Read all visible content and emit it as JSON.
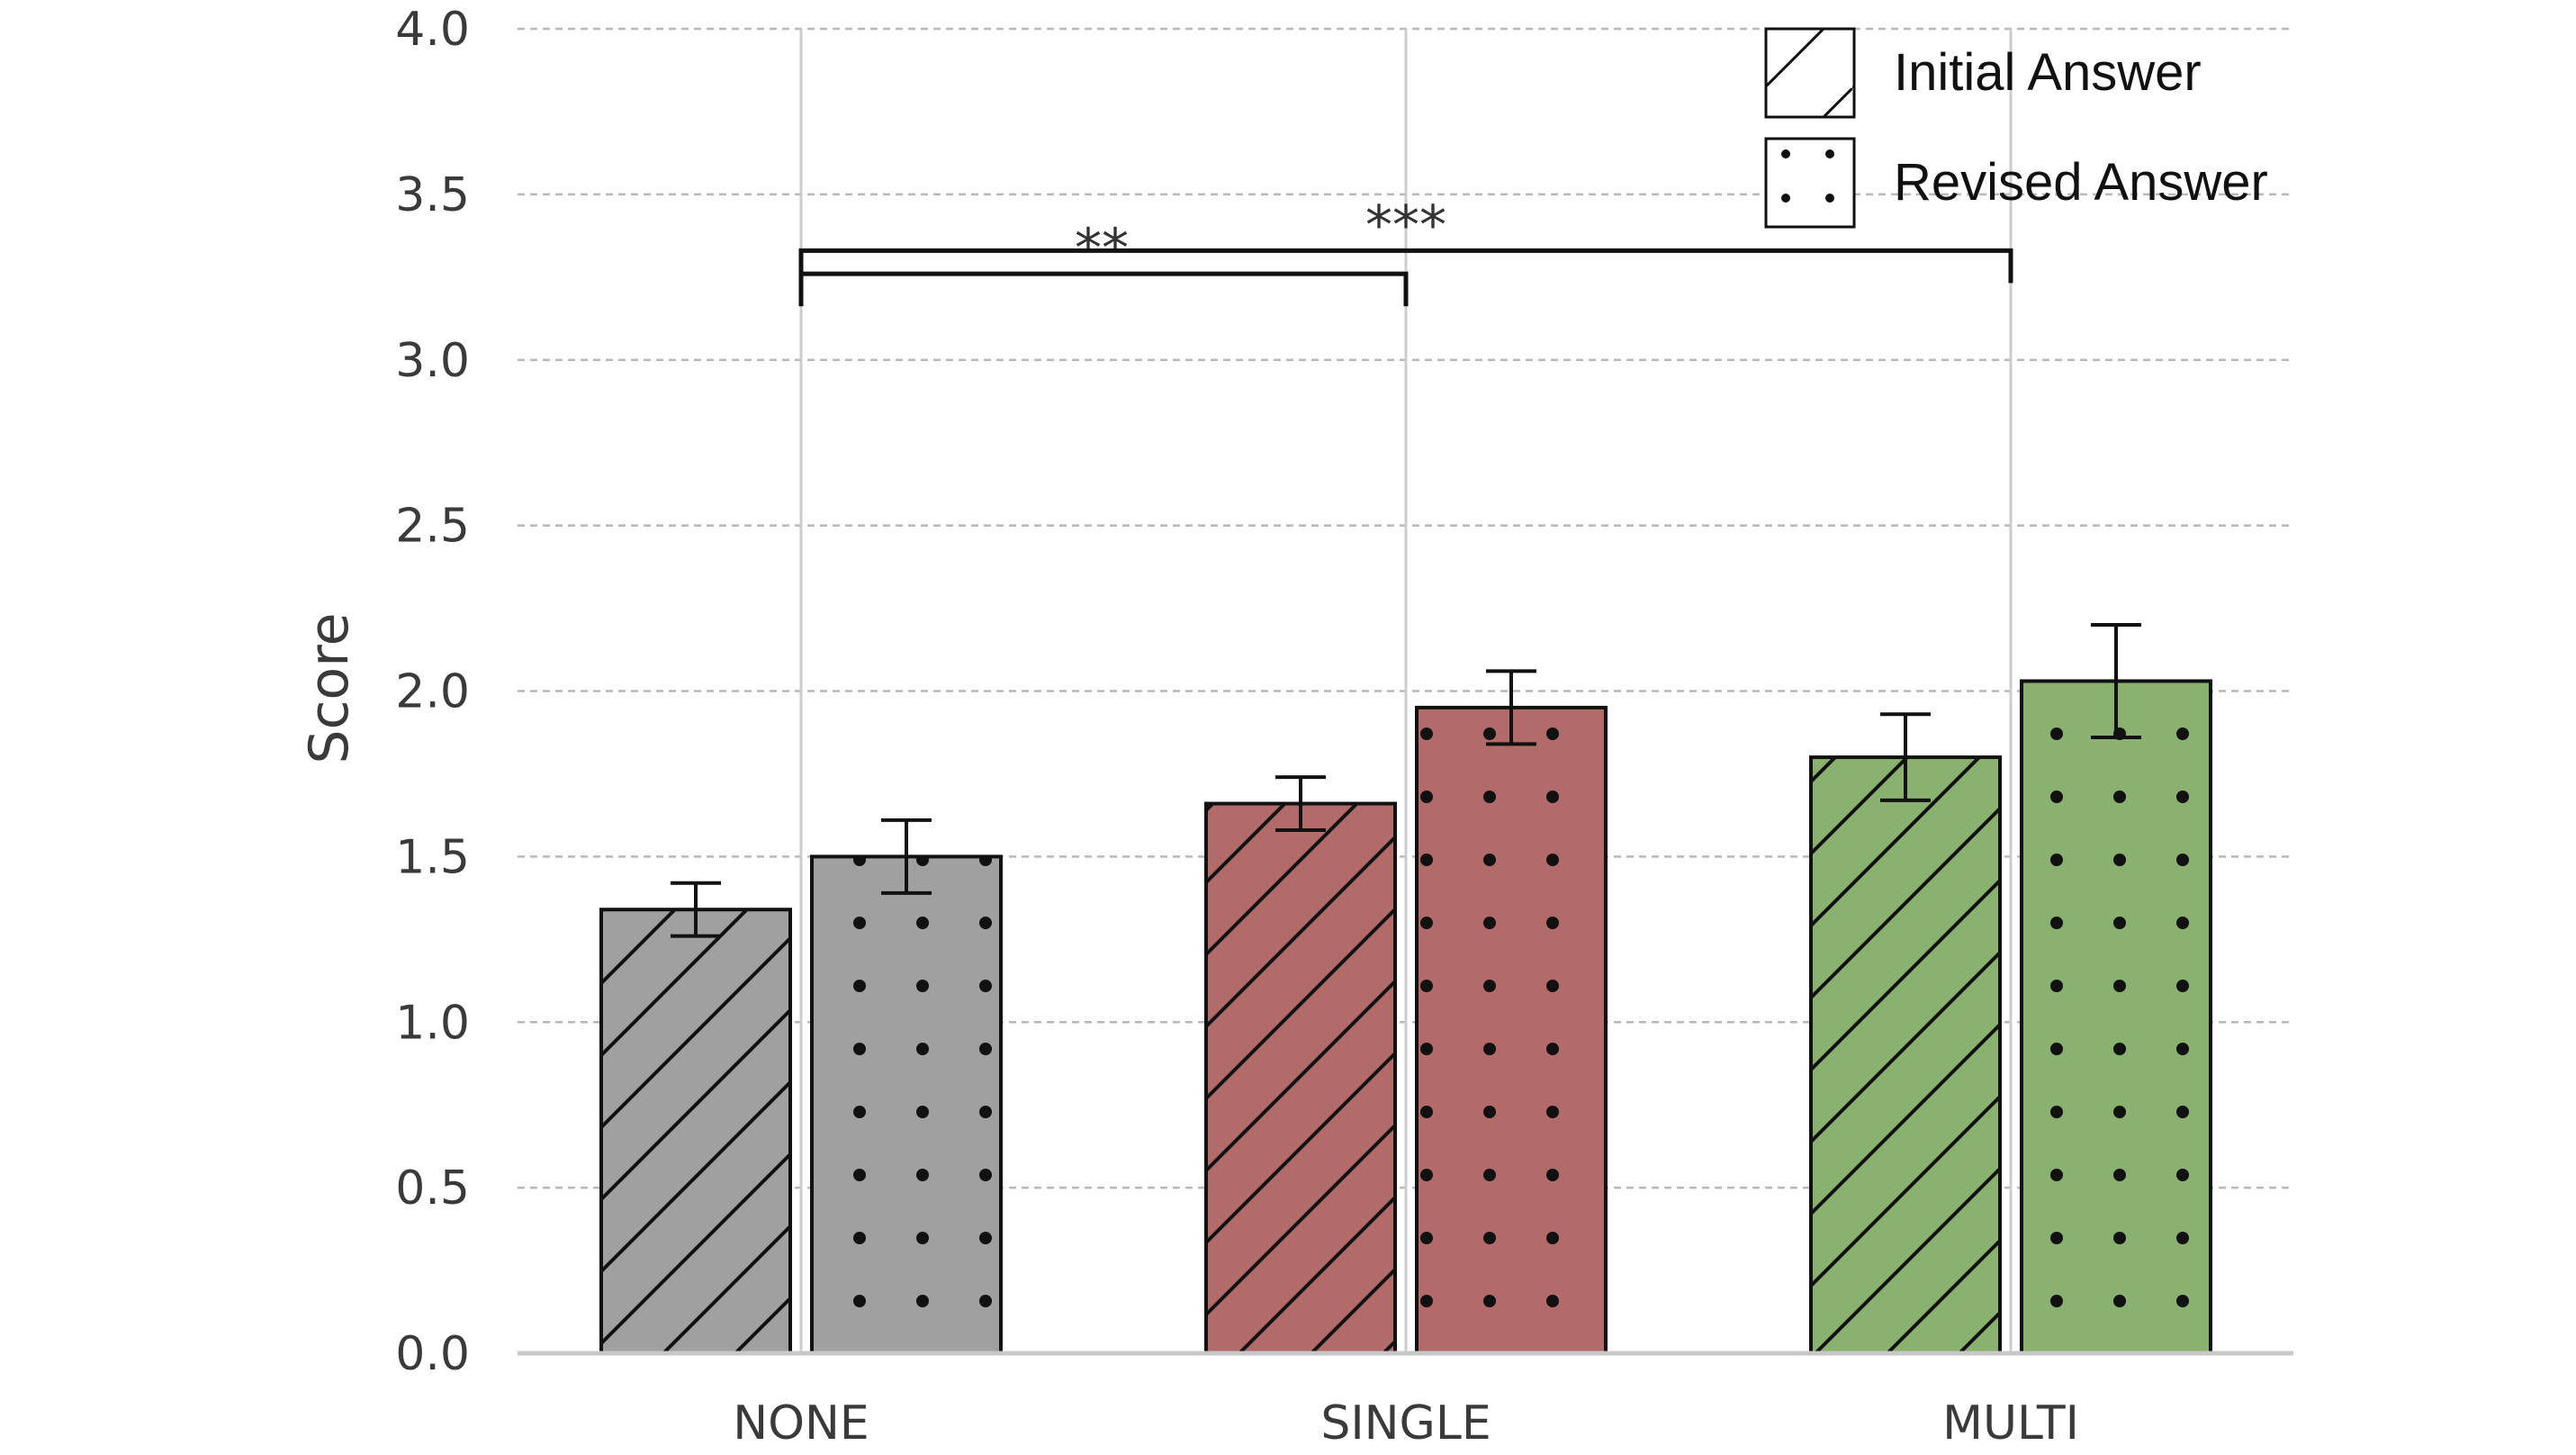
{
  "chart_data": {
    "type": "bar",
    "title": "",
    "xlabel": "",
    "ylabel": "Score",
    "ylim": [
      0,
      4.0
    ],
    "yticks": [
      "0.0",
      "0.5",
      "1.0",
      "1.5",
      "2.0",
      "2.5",
      "3.0",
      "3.5",
      "4.0"
    ],
    "grid": {
      "y": "dashed",
      "x": "solid at category centers"
    },
    "categories": [
      "NONE",
      "SINGLE",
      "MULTI"
    ],
    "category_colors": [
      "#a0a0a0",
      "#b36b6a",
      "#8ab170"
    ],
    "series": [
      {
        "name": "Initial Answer",
        "pattern": "diagonal-hatch",
        "values": [
          1.34,
          1.66,
          1.8
        ],
        "errors": [
          0.08,
          0.08,
          0.13
        ]
      },
      {
        "name": "Revised Answer",
        "pattern": "dots",
        "values": [
          1.5,
          1.95,
          2.03
        ],
        "errors": [
          0.11,
          0.11,
          0.17
        ]
      }
    ],
    "legend": {
      "position": "top-right",
      "entries": [
        "Initial Answer",
        "Revised Answer"
      ]
    },
    "significance": [
      {
        "from": "NONE",
        "to": "SINGLE",
        "label": "**",
        "y": 3.26
      },
      {
        "from": "NONE",
        "to": "MULTI",
        "label": "***",
        "y": 3.33
      }
    ]
  }
}
